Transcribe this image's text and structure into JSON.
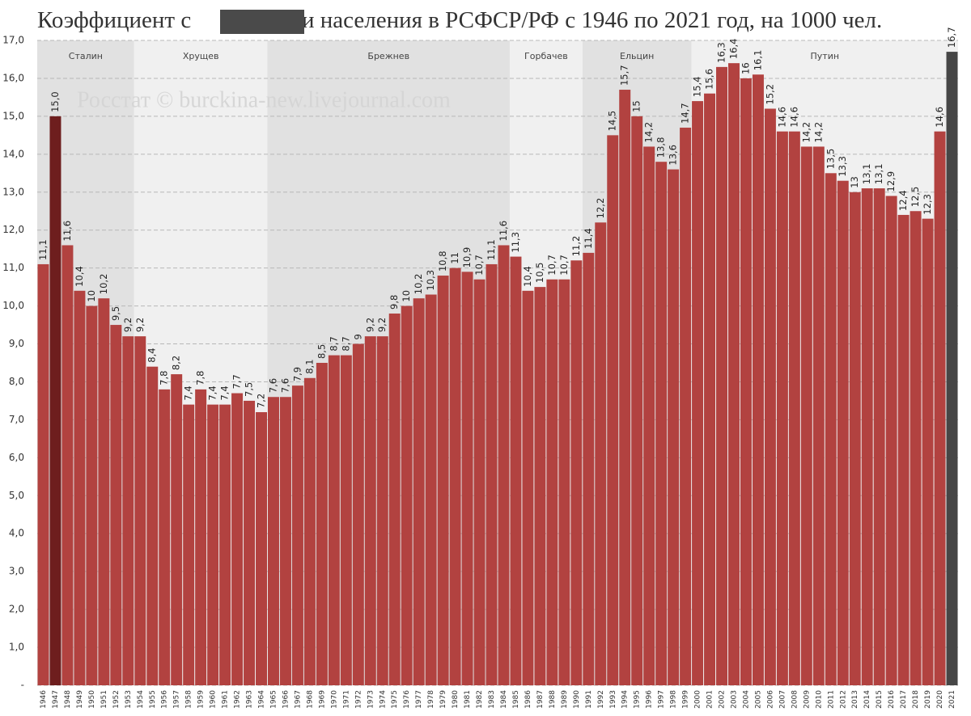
{
  "chart_data": {
    "type": "bar",
    "title": [
      "Коэффициент с",
      "сти населения в РСФСР/РФ с 1946 по 2021 год, на 1000 чел."
    ],
    "watermark": "Росстат © burckina-new.livejournal.com",
    "categories": [
      "1946",
      "1947",
      "1948",
      "1949",
      "1950",
      "1951",
      "1952",
      "1953",
      "1954",
      "1955",
      "1956",
      "1957",
      "1958",
      "1959",
      "1960",
      "1961",
      "1962",
      "1963",
      "1964",
      "1965",
      "1966",
      "1967",
      "1968",
      "1969",
      "1970",
      "1971",
      "1972",
      "1973",
      "1974",
      "1975",
      "1976",
      "1977",
      "1978",
      "1979",
      "1980",
      "1981",
      "1982",
      "1983",
      "1984",
      "1985",
      "1986",
      "1987",
      "1988",
      "1989",
      "1990",
      "1991",
      "1992",
      "1993",
      "1994",
      "1995",
      "1996",
      "1997",
      "1998",
      "1999",
      "2000",
      "2001",
      "2002",
      "2003",
      "2004",
      "2005",
      "2006",
      "2007",
      "2008",
      "2009",
      "2010",
      "2011",
      "2012",
      "2013",
      "2014",
      "2015",
      "2016",
      "2017",
      "2018",
      "2019",
      "2020",
      "2021"
    ],
    "values": [
      11.1,
      15.0,
      11.6,
      10.4,
      10,
      10.2,
      9.5,
      9.2,
      9.2,
      8.4,
      7.8,
      8.2,
      7.4,
      7.8,
      7.4,
      7.4,
      7.7,
      7.5,
      7.2,
      7.6,
      7.6,
      7.9,
      8.1,
      8.5,
      8.7,
      8.7,
      9,
      9.2,
      9.2,
      9.8,
      10,
      10.2,
      10.3,
      10.8,
      11,
      10.9,
      10.7,
      11.1,
      11.6,
      11.3,
      10.4,
      10.5,
      10.7,
      10.7,
      11.2,
      11.4,
      12.2,
      14.5,
      15.7,
      15,
      14.2,
      13.8,
      13.6,
      14.7,
      15.4,
      15.6,
      16.3,
      16.4,
      16,
      16.1,
      15.2,
      14.6,
      14.6,
      14.2,
      14.2,
      13.5,
      13.3,
      13,
      13.1,
      13.1,
      12.9,
      12.4,
      12.5,
      12.3,
      14.6,
      16.7
    ],
    "value_labels": [
      "11,1",
      "15,0",
      "11,6",
      "10,4",
      "10",
      "10,2",
      "9,5",
      "9,2",
      "9,2",
      "8,4",
      "7,8",
      "8,2",
      "7,4",
      "7,8",
      "7,4",
      "7,4",
      "7,7",
      "7,5",
      "7,2",
      "7,6",
      "7,6",
      "7,9",
      "8,1",
      "8,5",
      "8,7",
      "8,7",
      "9",
      "9,2",
      "9,2",
      "9,8",
      "10",
      "10,2",
      "10,3",
      "10,8",
      "11",
      "10,9",
      "10,7",
      "11,1",
      "11,6",
      "11,3",
      "10,4",
      "10,5",
      "10,7",
      "10,7",
      "11,2",
      "11,4",
      "12,2",
      "14,5",
      "15,7",
      "15",
      "14,2",
      "13,8",
      "13,6",
      "14,7",
      "15,4",
      "15,6",
      "16,3",
      "16,4",
      "16",
      "16,1",
      "15,2",
      "14,6",
      "14,6",
      "14,2",
      "14,2",
      "13,5",
      "13,3",
      "13",
      "13,1",
      "13,1",
      "12,9",
      "12,4",
      "12,5",
      "12,3",
      "14,6",
      "16,7"
    ],
    "color": "#b24240",
    "highlight": [
      {
        "category": "1947",
        "color": "#6e1e1e"
      },
      {
        "category": "2021",
        "color": "#464646"
      }
    ],
    "eras": [
      {
        "label": "Сталин",
        "start": "1946",
        "end": "1953",
        "color": "#e1e1e1"
      },
      {
        "label": "Хрущев",
        "start": "1954",
        "end": "1964",
        "color": "#f0f0f0"
      },
      {
        "label": "Брежнев",
        "start": "1965",
        "end": "1984",
        "color": "#e1e1e1"
      },
      {
        "label": "Горбачев",
        "start": "1985",
        "end": "1990",
        "color": "#f0f0f0"
      },
      {
        "label": "Ельцин",
        "start": "1991",
        "end": "1999",
        "color": "#e1e1e1"
      },
      {
        "label": "Путин",
        "start": "2000",
        "end": "2021",
        "color": "#f0f0f0"
      }
    ],
    "ylim": [
      0,
      17
    ],
    "yticks": [
      {
        "value": 0,
        "label": "-"
      },
      {
        "value": 1,
        "label": "1,0"
      },
      {
        "value": 2,
        "label": "2,0"
      },
      {
        "value": 3,
        "label": "3,0"
      },
      {
        "value": 4,
        "label": "4,0"
      },
      {
        "value": 5,
        "label": "5,0"
      },
      {
        "value": 6,
        "label": "6,0"
      },
      {
        "value": 7,
        "label": "7,0"
      },
      {
        "value": 8,
        "label": "8,0"
      },
      {
        "value": 9,
        "label": "9,0"
      },
      {
        "value": 10,
        "label": "10,0"
      },
      {
        "value": 11,
        "label": "11,0"
      },
      {
        "value": 12,
        "label": "12,0"
      },
      {
        "value": 13,
        "label": "13,0"
      },
      {
        "value": 14,
        "label": "14,0"
      },
      {
        "value": 15,
        "label": "15,0"
      },
      {
        "value": 16,
        "label": "16,0"
      },
      {
        "value": 17,
        "label": "17,0"
      }
    ],
    "grid": true
  }
}
